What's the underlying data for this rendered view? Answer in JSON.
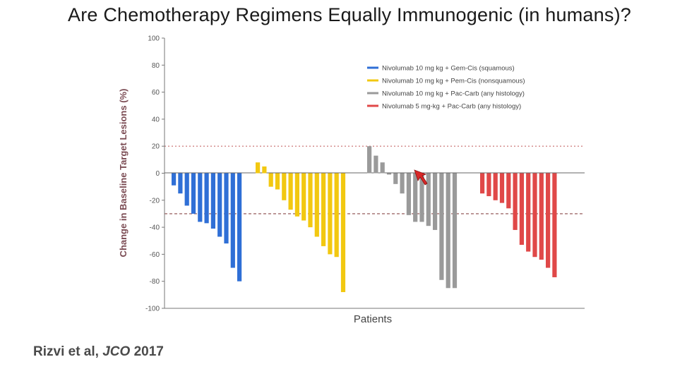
{
  "slide_title": "Are Chemotherapy Regimens Equally Immunogenic (in humans)?",
  "citation": {
    "authors": "Rizvi et al,",
    "journal": "JCO",
    "year": "2017"
  },
  "chart_data": {
    "type": "bar",
    "subtype": "waterfall",
    "title": "",
    "xlabel": "Patients",
    "ylabel": "Change in Baseline Target Lesions (%)",
    "ylim": [
      -100,
      100
    ],
    "yticks": [
      100,
      80,
      60,
      40,
      20,
      0,
      -20,
      -40,
      -60,
      -80,
      -100
    ],
    "reference_lines": [
      {
        "value": 20,
        "style": "dotted",
        "color": "#c96b6b"
      },
      {
        "value": -30,
        "style": "dashed",
        "color": "#8a4a4a"
      }
    ],
    "legend_position": "top-right",
    "series": [
      {
        "name": "Nivolumab 10 mg kg + Gem-Cis (squamous)",
        "color": "#2f6fd6",
        "values": [
          -9,
          -15,
          -24,
          -30,
          -36,
          -37,
          -41,
          -47,
          -52,
          -70,
          -80
        ]
      },
      {
        "name": "Nivolumab 10 mg kg + Pem-Cis (nonsquamous)",
        "color": "#f2c811",
        "values": [
          8,
          5,
          -10,
          -12,
          -20,
          -27,
          -32,
          -35,
          -40,
          -47,
          -54,
          -60,
          -62,
          -88
        ]
      },
      {
        "name": "Nivolumab 10 mg kg + Pac-Carb (any histology)",
        "color": "#9a9a9a",
        "values": [
          20,
          13,
          8,
          -1,
          -8,
          -15,
          -31,
          -36,
          -36,
          -39,
          -42,
          -79,
          -85,
          -85
        ]
      },
      {
        "name": "Nivolumab 5 mg-kg + Pac-Carb (any histology)",
        "color": "#e04848",
        "values": [
          -15,
          -17,
          -20,
          -22,
          -26,
          -42,
          -53,
          -58,
          -62,
          -64,
          -70,
          -77
        ]
      }
    ]
  }
}
